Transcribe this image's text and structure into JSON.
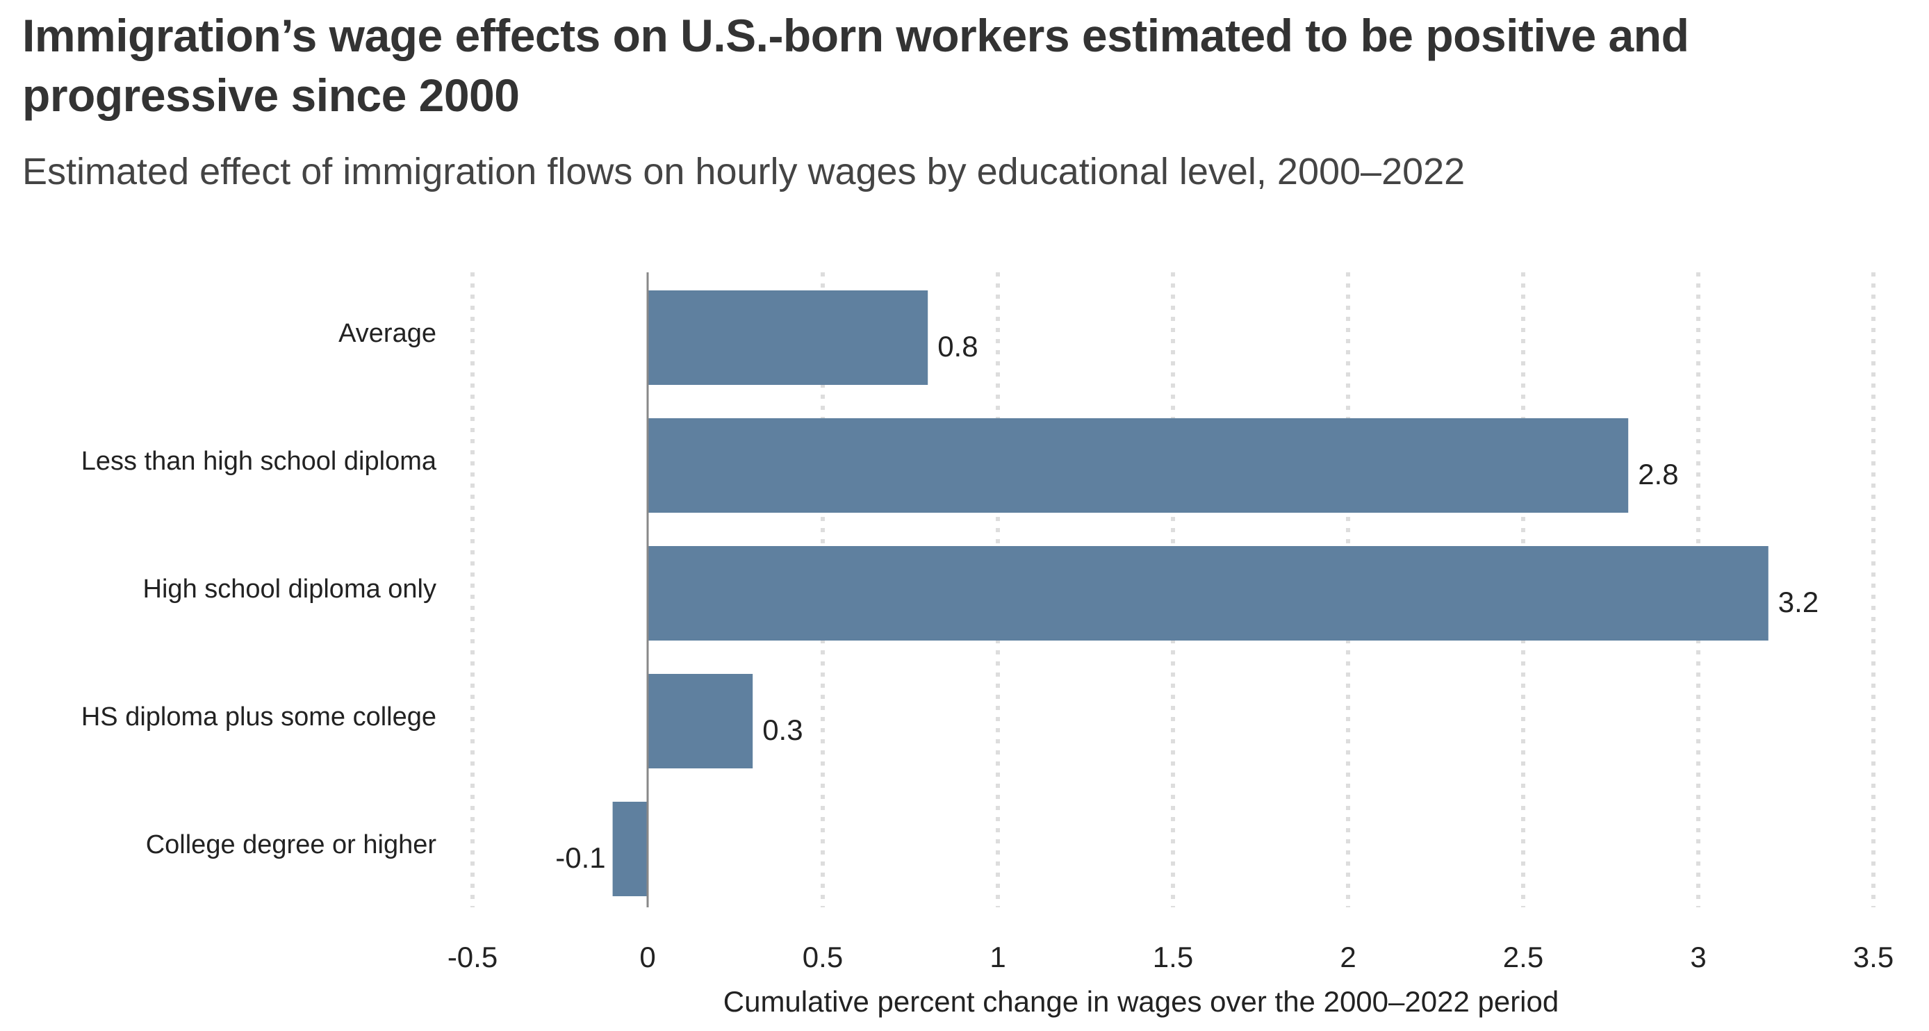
{
  "chart_data": {
    "type": "bar",
    "orientation": "horizontal",
    "title": "Immigration’s wage effects on U.S.-born workers estimated to be positive and progressive since 2000",
    "subtitle": "Estimated effect of immigration flows on hourly wages by educational level, 2000–2022",
    "xlabel": "Cumulative percent change in wages over the 2000–2022 period",
    "categories": [
      "Average",
      "Less than high school diploma",
      "High school diploma only",
      "HS diploma plus some college",
      "College degree or higher"
    ],
    "values": [
      0.8,
      2.8,
      3.2,
      0.3,
      -0.1
    ],
    "data_labels": [
      "0.8",
      "2.8",
      "3.2",
      "0.3",
      "-0.1"
    ],
    "xlim": [
      -0.5,
      3.5
    ],
    "xticks": [
      -0.5,
      0,
      0.5,
      1,
      1.5,
      2,
      2.5,
      3,
      3.5
    ],
    "xtick_labels": [
      "-0.5",
      "0",
      "0.5",
      "1",
      "1.5",
      "2",
      "2.5",
      "3",
      "3.5"
    ],
    "grid": true,
    "colors": {
      "bar": "#5f809f",
      "grid": "#dddddd",
      "zero_line": "#888888",
      "title": "#333333",
      "text": "#222222"
    }
  }
}
